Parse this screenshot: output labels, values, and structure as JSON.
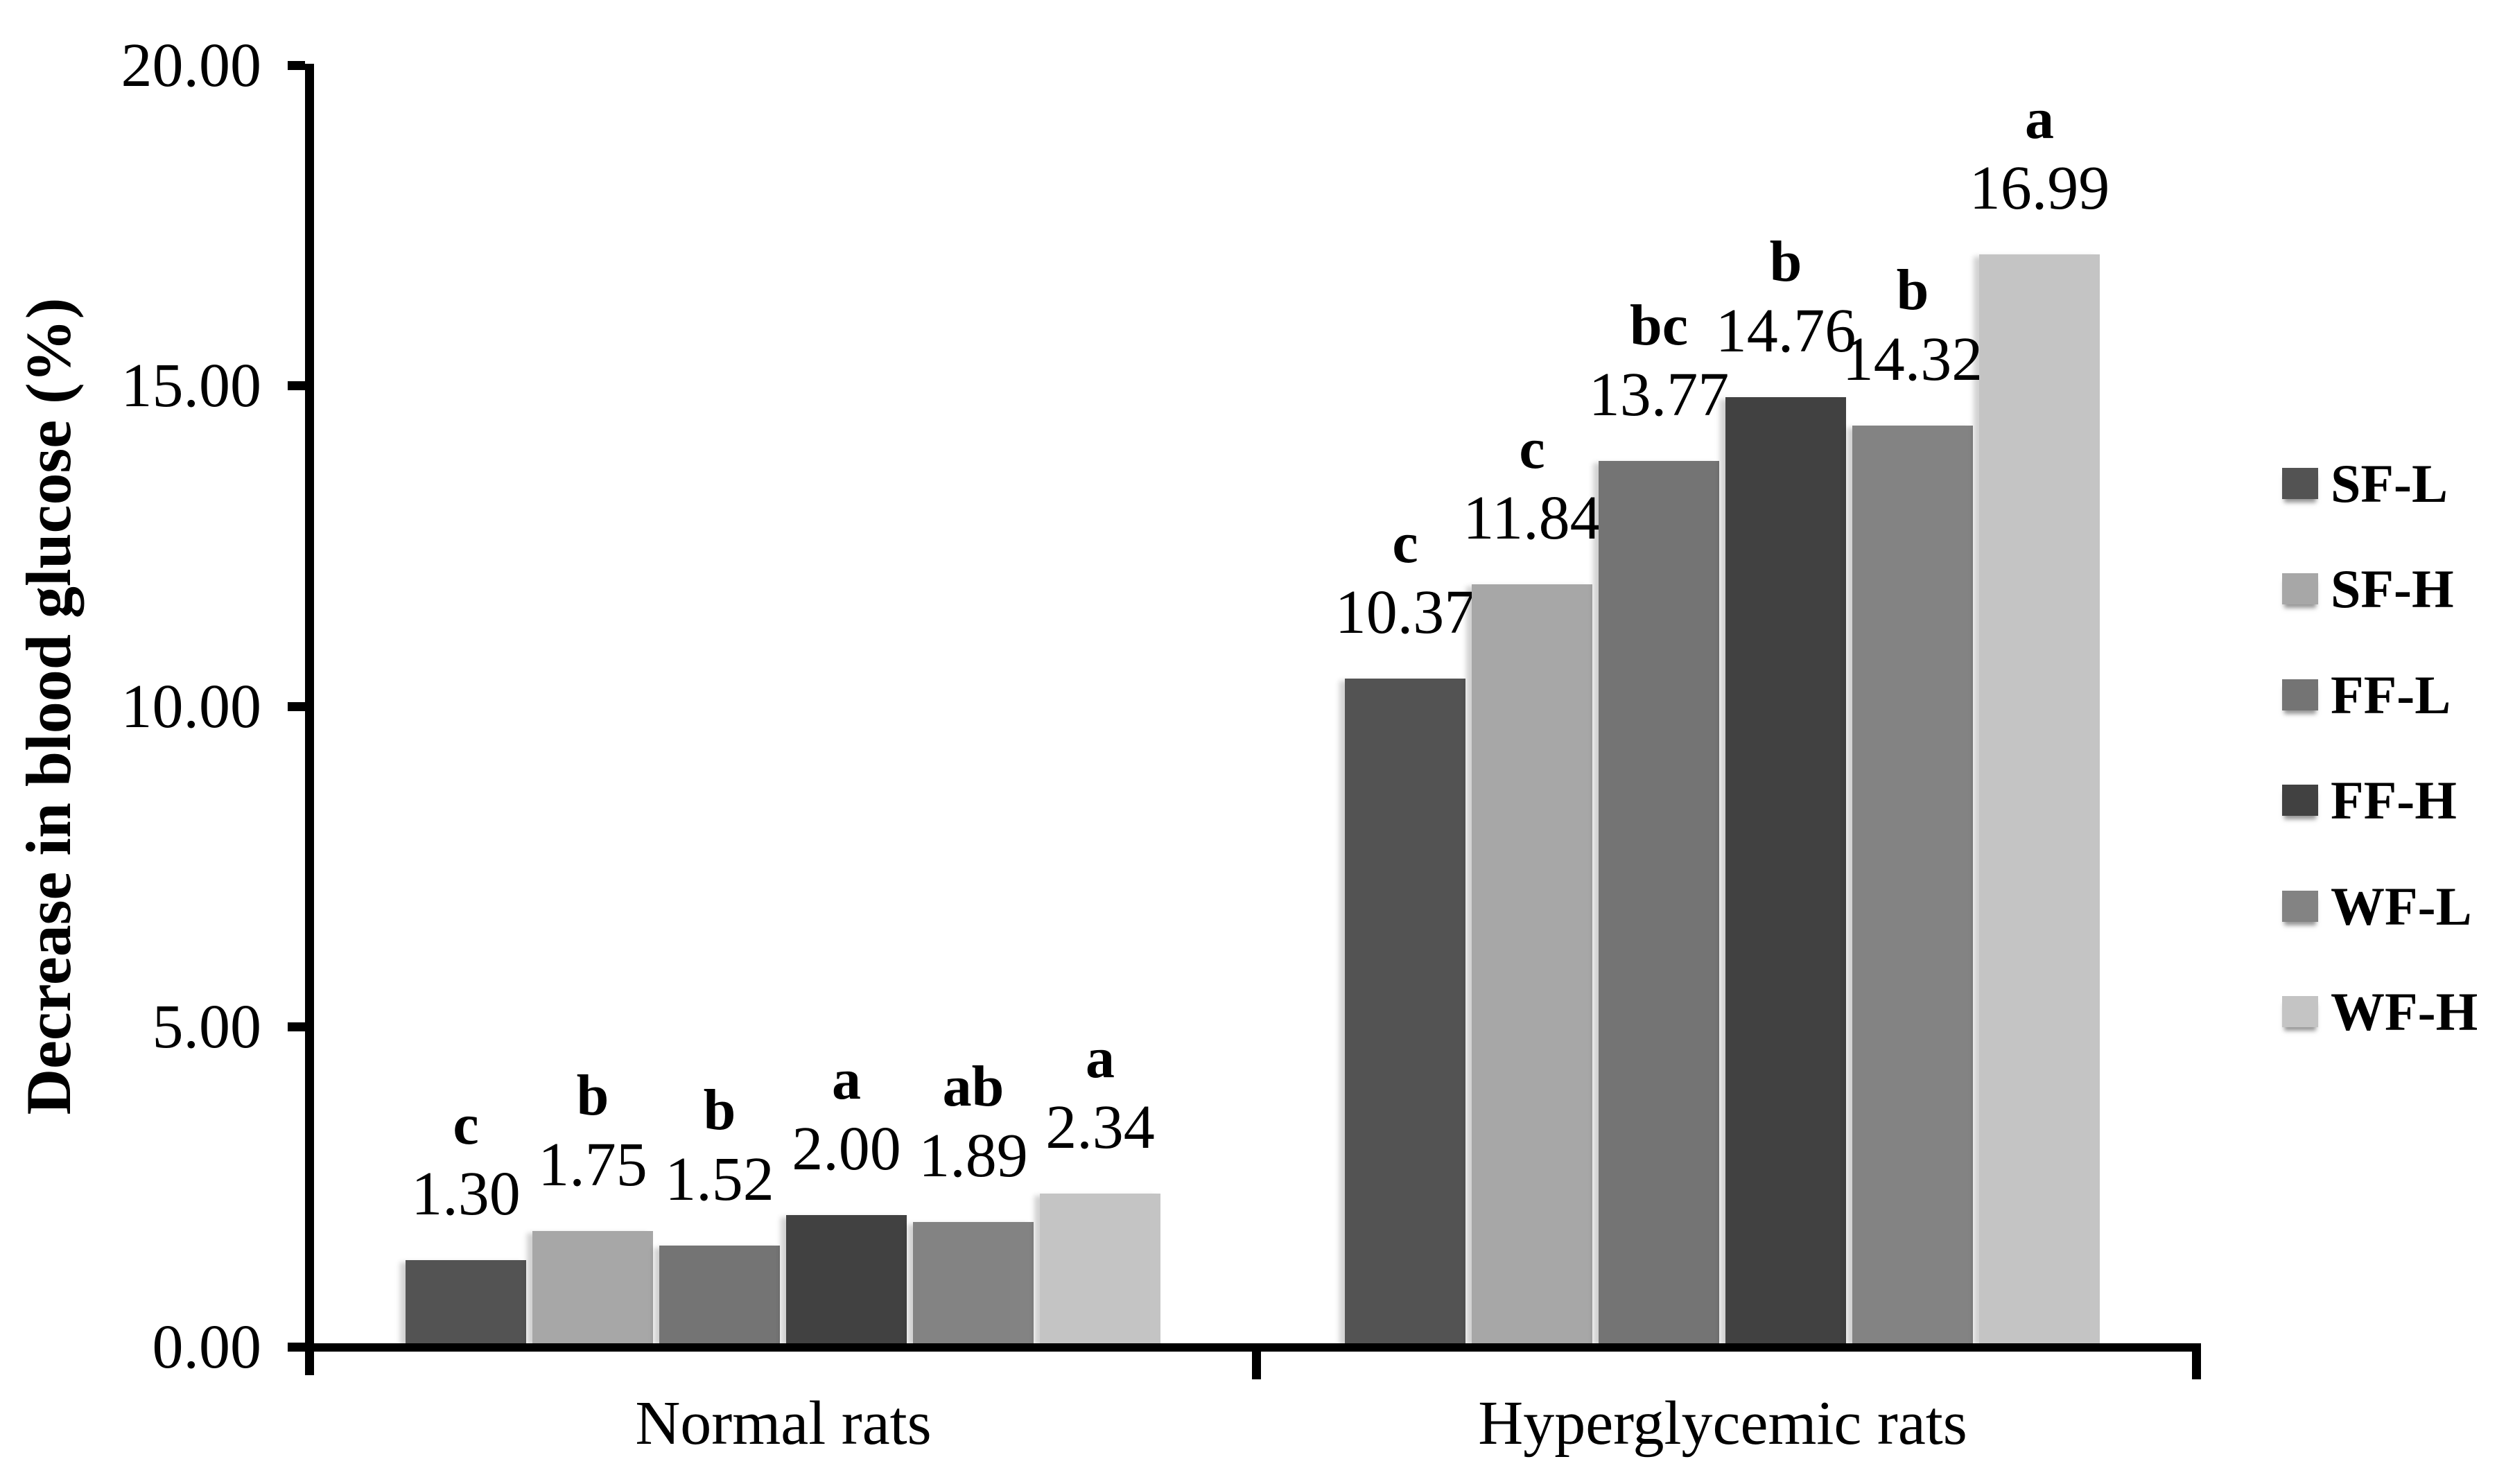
{
  "chart_data": {
    "type": "bar",
    "title": "",
    "ylabel": "Decrease in blood glucose (%)",
    "xlabel": "",
    "ylim": [
      0,
      20
    ],
    "ytick_step": 5,
    "yticks": [
      {
        "value": 0,
        "label": "0.00"
      },
      {
        "value": 5,
        "label": "5.00"
      },
      {
        "value": 10,
        "label": "10.00"
      },
      {
        "value": 15,
        "label": "15.00"
      },
      {
        "value": 20,
        "label": "20.00"
      }
    ],
    "categories": [
      "Normal rats",
      "Hyperglycemic rats"
    ],
    "series": [
      {
        "name": "SF-L",
        "color": "#535353",
        "values": [
          1.3,
          10.37
        ],
        "value_labels": [
          "1.30",
          "10.37"
        ],
        "sig_letters": [
          "c",
          "c"
        ]
      },
      {
        "name": "SF-H",
        "color": "#a7a7a7",
        "values": [
          1.75,
          11.84
        ],
        "value_labels": [
          "1.75",
          "11.84"
        ],
        "sig_letters": [
          "b",
          "c"
        ]
      },
      {
        "name": "FF-L",
        "color": "#747474",
        "values": [
          1.52,
          13.77
        ],
        "value_labels": [
          "1.52",
          "13.77"
        ],
        "sig_letters": [
          "b",
          "bc"
        ]
      },
      {
        "name": "FF-H",
        "color": "#414141",
        "values": [
          2.0,
          14.76
        ],
        "value_labels": [
          "2.00",
          "14.76"
        ],
        "sig_letters": [
          "a",
          "b"
        ]
      },
      {
        "name": "WF-L",
        "color": "#838383",
        "values": [
          1.89,
          14.32
        ],
        "value_labels": [
          "1.89",
          "14.32"
        ],
        "sig_letters": [
          "ab",
          "b"
        ]
      },
      {
        "name": "WF-H",
        "color": "#c4c4c4",
        "values": [
          2.34,
          16.99
        ],
        "value_labels": [
          "2.34",
          "16.99"
        ],
        "sig_letters": [
          "a",
          "a"
        ]
      }
    ],
    "legend": {
      "position": "right",
      "entries": [
        "SF-L",
        "SF-H",
        "FF-L",
        "FF-H",
        "WF-L",
        "WF-H"
      ]
    },
    "grid": false,
    "axis_color": "#000000",
    "text_color": "#000000",
    "background_color": "#ffffff"
  }
}
